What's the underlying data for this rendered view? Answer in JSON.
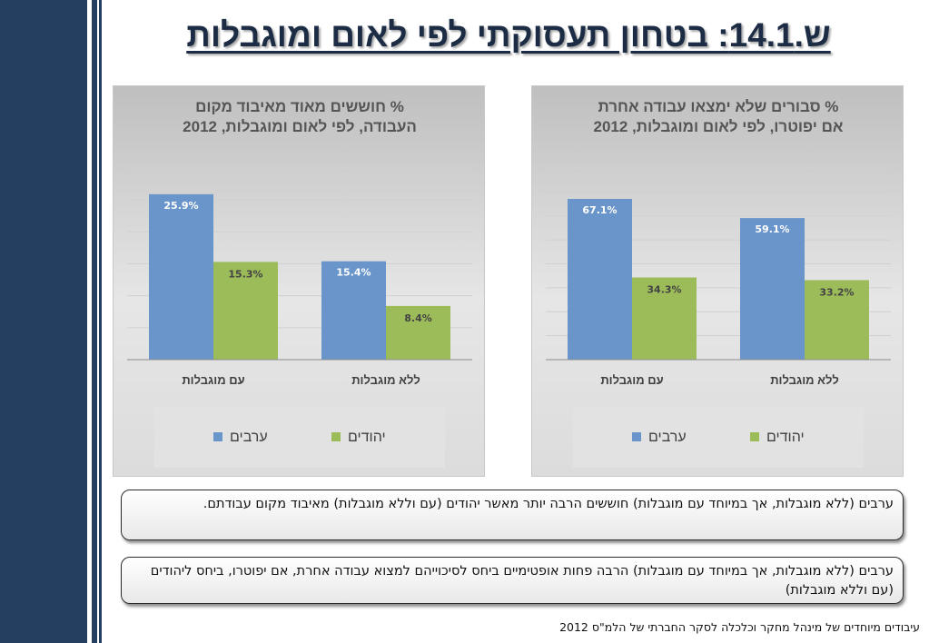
{
  "slide": {
    "title": "ש.14.1: בטחון תעסוקתי לפי לאום ומוגבלות",
    "notes": [
      "ערבים (ללא מוגבלות, אך במיוחד עם מוגבלות) חוששים הרבה יותר מאשר יהודים (עם וללא מוגבלות) מאיבוד מקום עבודתם.",
      "ערבים (ללא מוגבלות, אך במיוחד עם מוגבלות) הרבה פחות אופטימיים ביחס לסיכוייהם למצוא עבודה אחרת, אם יפוטרו, ביחס ליהודים (עם וללא מוגבלות)"
    ],
    "source": "עיבודים מיוחדים של מינהל מחקר וכלכלה  לסקר החברתי של הלמ\"ס 2012"
  },
  "colors": {
    "arabs": "#6a95cb",
    "jews": "#9cbb59",
    "title_bg": "#243f60"
  },
  "chart_data": [
    {
      "type": "bar",
      "title_lines": [
        "% חוששים מאוד מאיבוד מקום",
        "העבודה, לפי לאום ומוגבלות, 2012"
      ],
      "categories": [
        "עם מוגבלות",
        "ללא מוגבלות"
      ],
      "series": [
        {
          "name": "ערבים",
          "color": "#6a95cb",
          "values": [
            25.9,
            15.4
          ],
          "labels": [
            "25.9%",
            "15.4%"
          ]
        },
        {
          "name": "יהודים",
          "color": "#9cbb59",
          "values": [
            15.3,
            8.4
          ],
          "labels": [
            "15.3%",
            "8.4%"
          ]
        }
      ],
      "ylim": [
        0,
        30
      ],
      "gridlines": [
        5,
        10,
        15,
        20,
        25,
        30
      ],
      "legend_position": "bottom"
    },
    {
      "type": "bar",
      "title_lines": [
        "% סבורים שלא ימצאו עבודה אחרת",
        "אם יפוטרו, לפי לאום ומוגבלות, 2012"
      ],
      "categories": [
        "עם מוגבלות",
        "ללא מוגבלות"
      ],
      "series": [
        {
          "name": "ערבים",
          "color": "#6a95cb",
          "values": [
            67.1,
            59.1
          ],
          "labels": [
            "67.1%",
            "59.1%"
          ]
        },
        {
          "name": "יהודים",
          "color": "#9cbb59",
          "values": [
            34.3,
            33.2
          ],
          "labels": [
            "34.3%",
            "33.2%"
          ]
        }
      ],
      "ylim": [
        0,
        80
      ],
      "gridlines": [
        10,
        20,
        30,
        40,
        50,
        60,
        70,
        80
      ],
      "legend_position": "bottom"
    }
  ]
}
